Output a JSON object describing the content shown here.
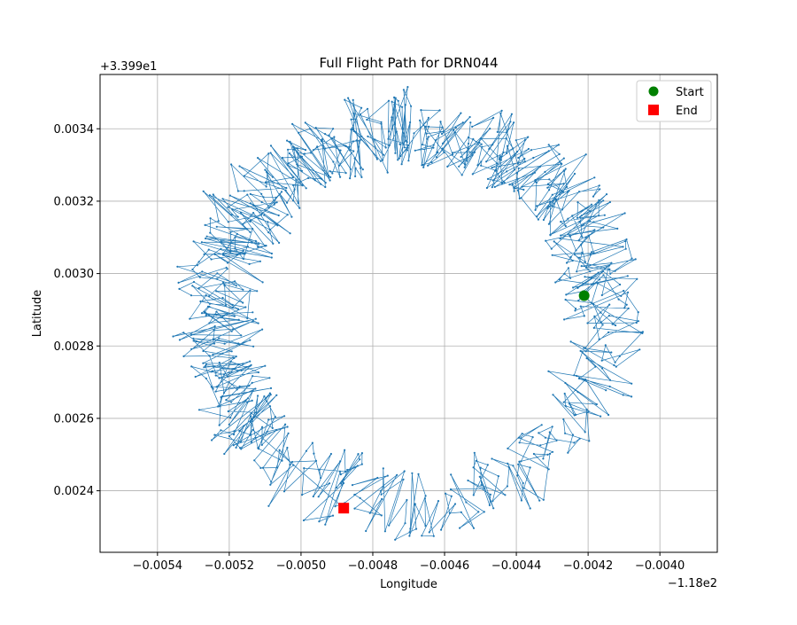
{
  "chart_data": {
    "type": "line",
    "title": "Full Flight Path for DRN044",
    "xlabel": "Longitude",
    "ylabel": "Latitude",
    "x_offset_label": "−1.18e2",
    "y_offset_label": "+3.399e1",
    "xlim": [
      -0.00556,
      -0.00384
    ],
    "ylim": [
      0.00223,
      0.00355
    ],
    "xticks": [
      -0.0054,
      -0.0052,
      -0.005,
      -0.0048,
      -0.0046,
      -0.0044,
      -0.0042,
      -0.004
    ],
    "xtick_labels": [
      "−0.0054",
      "−0.0052",
      "−0.0050",
      "−0.0048",
      "−0.0046",
      "−0.0044",
      "−0.0042",
      "−0.0040"
    ],
    "yticks": [
      0.0024,
      0.0026,
      0.0028,
      0.003,
      0.0032,
      0.0034
    ],
    "ytick_labels": [
      "0.0024",
      "0.0026",
      "0.0028",
      "0.0030",
      "0.0032",
      "0.0034"
    ],
    "grid": true,
    "legend_position": "top-right",
    "path": {
      "center": [
        -0.004695,
        0.002883
      ],
      "radius_x": 0.000545,
      "radius_y": 0.00051,
      "start_angle_deg": 0,
      "revolutions": 1.62,
      "num_points": 900,
      "color": "#1f77b4"
    },
    "series": [
      {
        "name": "Start",
        "x": [
          -0.004211
        ],
        "y": [
          0.002939
        ],
        "color": "#008000",
        "marker": "circle"
      },
      {
        "name": "End",
        "x": [
          -0.004881
        ],
        "y": [
          0.002352
        ],
        "color": "#ff0000",
        "marker": "square"
      }
    ]
  }
}
